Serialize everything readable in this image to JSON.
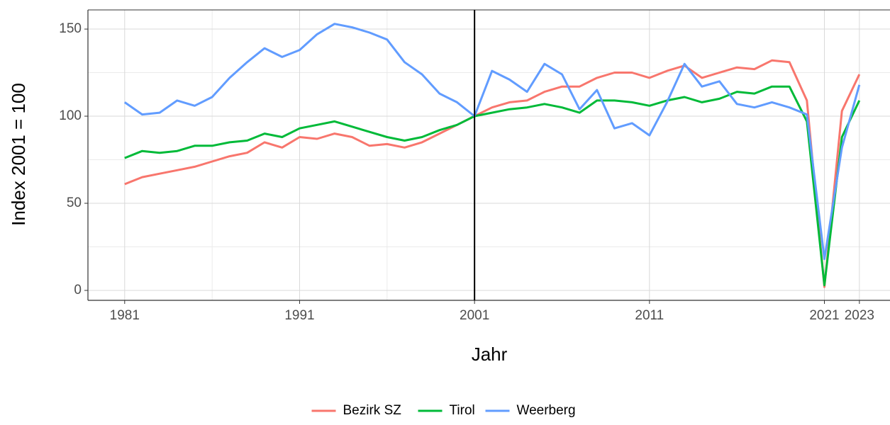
{
  "chart_data": {
    "type": "line",
    "x_label": "Jahr",
    "y_label": "Index 2001 = 100",
    "x": [
      1981,
      1982,
      1983,
      1984,
      1985,
      1986,
      1987,
      1988,
      1989,
      1990,
      1991,
      1992,
      1993,
      1994,
      1995,
      1996,
      1997,
      1998,
      1999,
      2000,
      2001,
      2002,
      2003,
      2004,
      2005,
      2006,
      2007,
      2008,
      2009,
      2010,
      2011,
      2012,
      2013,
      2014,
      2015,
      2016,
      2017,
      2018,
      2019,
      2020,
      2021,
      2022,
      2023
    ],
    "series": [
      {
        "name": "Bezirk SZ",
        "color": "#F8766D",
        "values": [
          61,
          65,
          67,
          69,
          71,
          74,
          77,
          79,
          85,
          82,
          88,
          87,
          90,
          88,
          83,
          84,
          82,
          85,
          90,
          95,
          100,
          105,
          108,
          109,
          114,
          117,
          117,
          122,
          125,
          125,
          122,
          126,
          129,
          122,
          125,
          128,
          127,
          132,
          131,
          109,
          2,
          103,
          124
        ]
      },
      {
        "name": "Tirol",
        "color": "#00BA38",
        "values": [
          76,
          80,
          79,
          80,
          83,
          83,
          85,
          86,
          90,
          88,
          93,
          95,
          97,
          94,
          91,
          88,
          86,
          88,
          92,
          95,
          100,
          102,
          104,
          105,
          107,
          105,
          102,
          109,
          109,
          108,
          106,
          109,
          111,
          108,
          110,
          114,
          113,
          117,
          117,
          97,
          3,
          88,
          109
        ]
      },
      {
        "name": "Weerberg",
        "color": "#619CFF",
        "values": [
          108,
          101,
          102,
          109,
          106,
          111,
          122,
          131,
          139,
          134,
          138,
          147,
          153,
          151,
          148,
          144,
          131,
          124,
          113,
          108,
          100,
          126,
          121,
          114,
          130,
          124,
          104,
          115,
          93,
          96,
          89,
          108,
          130,
          117,
          120,
          107,
          105,
          108,
          105,
          101,
          18,
          82,
          118
        ]
      }
    ],
    "xlim": [
      1978.9,
      2024.75
    ],
    "xticks": [
      1981,
      1991,
      2001,
      2011,
      2021,
      2023
    ],
    "ylim": [
      -5.7,
      161
    ],
    "yticks": [
      0,
      50,
      100,
      150
    ],
    "vline": 2001,
    "grid": true,
    "legend": "bottom"
  }
}
